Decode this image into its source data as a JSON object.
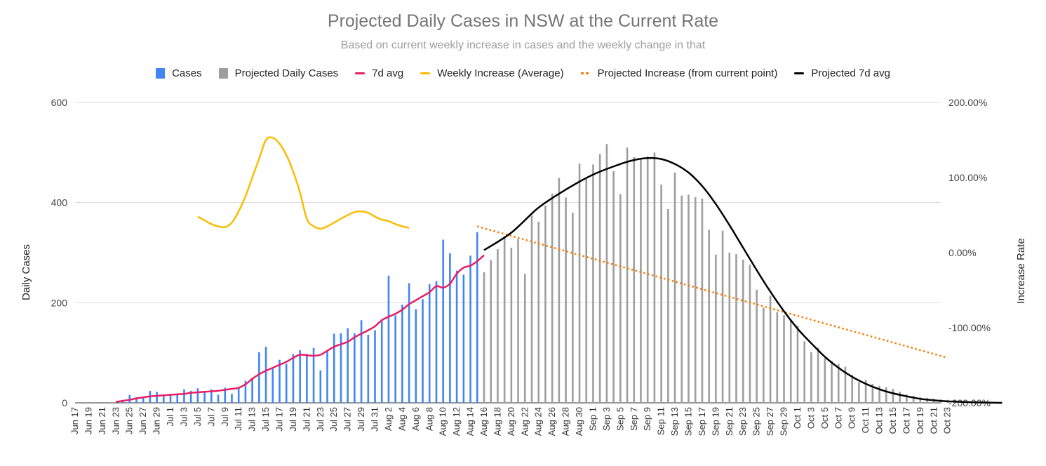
{
  "chart_data": {
    "type": "bar",
    "title": "Projected Daily Cases in NSW at the Current Rate",
    "subtitle": "Based on current weekly increase in cases and the weekly change in that",
    "ylabel": "Daily Cases",
    "y2label": "Increase Rate",
    "ylim": [
      0,
      600
    ],
    "y2lim": [
      -2.0,
      2.0
    ],
    "yticks": [
      "0",
      "200",
      "400",
      "600"
    ],
    "y2ticks": [
      "-200.00%",
      "-100.00%",
      "0.00%",
      "100.00%",
      "200.00%"
    ],
    "grid": true,
    "legend_position": "top",
    "colors": {
      "cases": "#4285f4",
      "projected": "#9e9e9e",
      "avg7": "#e91e63",
      "weekly": "#fbbc04",
      "projected_increase": "#f57c00",
      "projected_avg7": "#000000"
    },
    "x_start": "2021-06-17",
    "x_tick_labels": [
      "Jun 17",
      "Jun 19",
      "Jun 21",
      "Jun 23",
      "Jun 25",
      "Jun 27",
      "Jun 29",
      "Jul 1",
      "Jul 3",
      "Jul 5",
      "Jul 7",
      "Jul 9",
      "Jul 11",
      "Jul 13",
      "Jul 15",
      "Jul 17",
      "Jul 19",
      "Jul 21",
      "Jul 23",
      "Jul 25",
      "Jul 27",
      "Jul 29",
      "Jul 31",
      "Aug 2",
      "Aug 4",
      "Aug 6",
      "Aug 8",
      "Aug 10",
      "Aug 12",
      "Aug 14",
      "Aug 16",
      "Aug 18",
      "Aug 20",
      "Aug 22",
      "Aug 24",
      "Aug 26",
      "Aug 28",
      "Aug 30",
      "Sep 1",
      "Sep 3",
      "Sep 5",
      "Sep 7",
      "Sep 9",
      "Sep 11",
      "Sep 13",
      "Sep 15",
      "Sep 17",
      "Sep 19",
      "Sep 21",
      "Sep 23",
      "Sep 25",
      "Sep 27",
      "Sep 29",
      "Oct 1",
      "Oct 3",
      "Oct 5",
      "Oct 7",
      "Oct 9",
      "Oct 11",
      "Oct 13",
      "Oct 15",
      "Oct 17",
      "Oct 19",
      "Oct 21",
      "Oct 23"
    ],
    "legend": [
      {
        "key": "cases",
        "label": "Cases",
        "style": "box"
      },
      {
        "key": "projected",
        "label": "Projected Daily Cases",
        "style": "box"
      },
      {
        "key": "avg7",
        "label": "7d avg",
        "style": "line"
      },
      {
        "key": "weekly",
        "label": "Weekly Increase (Average)",
        "style": "line"
      },
      {
        "key": "projected_increase",
        "label": "Projected Increase (from current point)",
        "style": "dots"
      },
      {
        "key": "projected_avg7",
        "label": "Projected 7d avg",
        "style": "line"
      }
    ],
    "series": [
      {
        "name": "Cases",
        "type": "bar",
        "axis": "left",
        "start": "2021-06-17",
        "values": [
          0,
          0,
          0,
          0,
          0,
          0,
          0,
          3,
          16,
          11,
          11,
          24,
          22,
          16,
          18,
          19,
          27,
          24,
          29,
          22,
          27,
          16,
          30,
          18,
          30,
          44,
          50,
          101,
          112,
          68,
          86,
          78,
          97,
          105,
          98,
          110,
          65,
          103,
          138,
          139,
          149,
          139,
          165,
          136,
          145,
          163,
          254,
          175,
          196,
          239,
          187,
          207,
          237,
          243,
          326,
          299,
          264,
          256,
          294,
          341
        ]
      },
      {
        "name": "Projected Daily Cases",
        "type": "bar",
        "axis": "left",
        "start": "2021-08-16",
        "values": [
          261,
          285,
          307,
          333,
          310,
          327,
          258,
          374,
          362,
          394,
          418,
          449,
          410,
          380,
          478,
          447,
          476,
          497,
          517,
          463,
          417,
          510,
          491,
          486,
          492,
          500,
          436,
          387,
          460,
          414,
          416,
          411,
          408,
          346,
          296,
          344,
          300,
          297,
          286,
          276,
          226,
          190,
          214,
          181,
          175,
          164,
          154,
          123,
          101,
          110,
          89,
          84,
          78,
          72,
          56,
          41,
          46,
          38,
          34,
          31,
          28,
          22,
          17,
          14,
          11,
          10,
          8,
          7,
          6,
          5,
          3,
          3,
          2,
          2,
          1,
          1,
          0
        ]
      },
      {
        "name": "7d avg",
        "type": "line",
        "axis": "left",
        "start": "2021-06-23",
        "values": [
          2,
          4,
          6,
          9,
          11,
          13,
          14,
          15,
          16,
          17,
          18,
          20,
          21,
          22,
          23,
          24,
          26,
          28,
          30,
          37,
          48,
          57,
          64,
          70,
          76,
          82,
          90,
          96,
          95,
          94,
          96,
          104,
          112,
          117,
          122,
          131,
          138,
          145,
          153,
          165,
          172,
          178,
          186,
          197,
          205,
          213,
          221,
          233,
          230,
          238,
          258,
          270,
          274,
          283,
          295
        ]
      },
      {
        "name": "Weekly Increase (Average)",
        "type": "line",
        "axis": "right",
        "start": "2021-07-05",
        "values": [
          0.48,
          0.43,
          0.38,
          0.35,
          0.34,
          0.4,
          0.55,
          0.75,
          1.0,
          1.25,
          1.5,
          1.53,
          1.45,
          1.3,
          1.08,
          0.8,
          0.45,
          0.35,
          0.32,
          0.35,
          0.4,
          0.45,
          0.5,
          0.54,
          0.55,
          0.53,
          0.48,
          0.44,
          0.42,
          0.38,
          0.35,
          0.33
        ]
      },
      {
        "name": "Projected Increase (from current point)",
        "type": "line",
        "style": "dotted",
        "axis": "right",
        "start": "2021-08-15",
        "end": "2021-10-23",
        "start_value": 0.35,
        "end_value": -1.4
      },
      {
        "name": "Projected 7d avg",
        "type": "line",
        "axis": "left",
        "start": "2021-08-16",
        "points": [
          [
            0,
            305
          ],
          [
            4,
            340
          ],
          [
            8,
            390
          ],
          [
            12,
            426
          ],
          [
            16,
            456
          ],
          [
            20,
            477
          ],
          [
            22,
            485
          ],
          [
            24,
            489
          ],
          [
            26,
            487
          ],
          [
            28,
            477
          ],
          [
            30,
            460
          ],
          [
            32,
            433
          ],
          [
            34,
            397
          ],
          [
            36,
            355
          ],
          [
            38,
            310
          ],
          [
            40,
            265
          ],
          [
            42,
            222
          ],
          [
            44,
            183
          ],
          [
            46,
            148
          ],
          [
            48,
            119
          ],
          [
            50,
            92
          ],
          [
            52,
            70
          ],
          [
            54,
            52
          ],
          [
            56,
            38
          ],
          [
            58,
            27
          ],
          [
            60,
            19
          ],
          [
            62,
            13
          ],
          [
            64,
            8
          ],
          [
            66,
            5
          ],
          [
            68,
            3
          ],
          [
            70,
            2
          ],
          [
            72,
            1
          ],
          [
            74,
            0.5
          ],
          [
            76,
            0
          ]
        ]
      }
    ]
  }
}
